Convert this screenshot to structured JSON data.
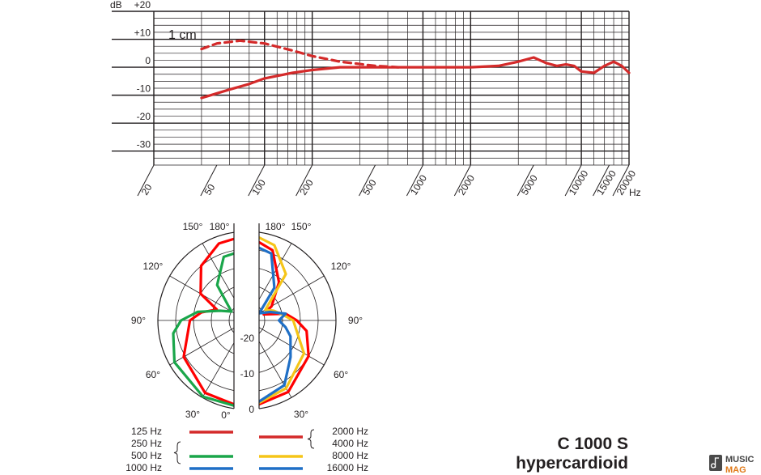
{
  "product": {
    "model": "C 1000 S",
    "pattern": "hypercardioid"
  },
  "watermark": {
    "line1": "MUSIC",
    "line2": "MAG"
  },
  "colors": {
    "curve": "#d42a2a",
    "green": "#1aa64a",
    "yellow": "#f5c518",
    "blue": "#1f6fc6",
    "grid": "#231f20"
  },
  "chart_data": [
    {
      "type": "line",
      "name": "frequency-response",
      "xscale": "log",
      "xlim": [
        20,
        20000
      ],
      "ylim": [
        -35,
        20
      ],
      "y_axis_unit": "dB",
      "x_axis_unit": "Hz",
      "xticks": [
        20,
        50,
        100,
        200,
        500,
        1000,
        2000,
        5000,
        10000,
        15000,
        20000
      ],
      "xtick_labels": [
        "20",
        "50",
        "100",
        "200",
        "500",
        "1000",
        "2000",
        "5000",
        "10000",
        "15000",
        "20000"
      ],
      "yticks": [
        20,
        10,
        0,
        -10,
        -20,
        -30
      ],
      "ytick_labels": [
        "+20",
        "+10",
        "0",
        "-10",
        "-20",
        "-30"
      ],
      "annotation": "1 cm",
      "series": [
        {
          "style": "solid",
          "x": [
            40,
            60,
            80,
            100,
            150,
            200,
            300,
            500,
            1000,
            2000,
            3000,
            4000,
            5000,
            6000,
            7000,
            8000,
            9000,
            10000,
            12000,
            14000,
            16000,
            18000,
            20000
          ],
          "y": [
            -11,
            -8,
            -6,
            -4,
            -2,
            -1,
            0,
            0,
            0,
            0,
            0.5,
            2,
            3.5,
            1.5,
            0.5,
            1,
            0.5,
            -1.5,
            -2,
            0.5,
            2,
            0.5,
            -2
          ]
        },
        {
          "style": "dashed",
          "x": [
            40,
            50,
            70,
            100,
            150,
            200,
            300,
            500,
            700
          ],
          "y": [
            6.5,
            8.5,
            9.5,
            8.5,
            6,
            4,
            2,
            0.5,
            0
          ]
        }
      ],
      "grid": true
    },
    {
      "type": "polar",
      "name": "polar-pattern",
      "radial_ticks": [
        0,
        -10,
        -20
      ],
      "radial_labels": [
        "0",
        "-10",
        "-20"
      ],
      "radial_range_db": [
        -25,
        0
      ],
      "angle_ticks_deg": [
        0,
        30,
        60,
        90,
        120,
        150,
        180
      ],
      "left_angle_labels": [
        "0°",
        "30°",
        "60°",
        "90°",
        "120°",
        "150°",
        "180°"
      ],
      "right_angle_labels": [
        "30°",
        "60°",
        "90°",
        "120°",
        "150°",
        "180°"
      ],
      "legend": {
        "left_items": [
          "125 Hz",
          "250 Hz",
          "500 Hz",
          "1000 Hz"
        ],
        "right_items": [
          "2000 Hz",
          "4000 Hz",
          "8000 Hz",
          "16000 Hz"
        ],
        "left_lines": [
          {
            "color": "red",
            "freqs": [
              "125 Hz"
            ]
          },
          {
            "color": "green",
            "freqs": [
              "250 Hz",
              "500 Hz"
            ]
          },
          {
            "color": "blue",
            "freqs": [
              "1000 Hz"
            ]
          }
        ],
        "right_lines": [
          {
            "color": "red",
            "freqs": [
              "2000 Hz",
              "4000 Hz"
            ]
          },
          {
            "color": "yellow",
            "freqs": [
              "8000 Hz"
            ]
          },
          {
            "color": "blue",
            "freqs": [
              "16000 Hz"
            ]
          }
        ]
      },
      "series": [
        {
          "side": "left",
          "color": "red",
          "angles": [
            0,
            30,
            60,
            90,
            100,
            110,
            120,
            140,
            160,
            180
          ],
          "db": [
            0,
            -1.5,
            -4.5,
            -9,
            -12,
            -16,
            -10,
            -5,
            -2,
            -1
          ]
        },
        {
          "side": "left",
          "color": "green",
          "angles": [
            0,
            30,
            60,
            80,
            90,
            100,
            110,
            120,
            140,
            160,
            180
          ],
          "db": [
            0,
            -0.3,
            -1.5,
            -4,
            -6.5,
            -11,
            -17,
            -20,
            -12,
            -6,
            -5
          ]
        },
        {
          "side": "right",
          "color": "red",
          "angles": [
            0,
            30,
            60,
            80,
            90,
            100,
            110,
            120,
            140,
            160,
            180
          ],
          "db": [
            0,
            -1.8,
            -5,
            -8,
            -11,
            -14,
            -20,
            -17,
            -11,
            -4,
            -1
          ]
        },
        {
          "side": "right",
          "color": "yellow",
          "angles": [
            0,
            30,
            60,
            90,
            100,
            110,
            120,
            140,
            160,
            180
          ],
          "db": [
            0,
            -3,
            -6.5,
            -12,
            -15,
            -17,
            -19,
            -8,
            -2.5,
            0
          ]
        },
        {
          "side": "right",
          "color": "blue",
          "angles": [
            0,
            30,
            50,
            70,
            80,
            90,
            100,
            110,
            120,
            140,
            160,
            180
          ],
          "db": [
            0,
            -4,
            -9,
            -12,
            -14,
            -16,
            -14,
            -18,
            -21,
            -13,
            -5,
            -3
          ]
        }
      ]
    }
  ]
}
